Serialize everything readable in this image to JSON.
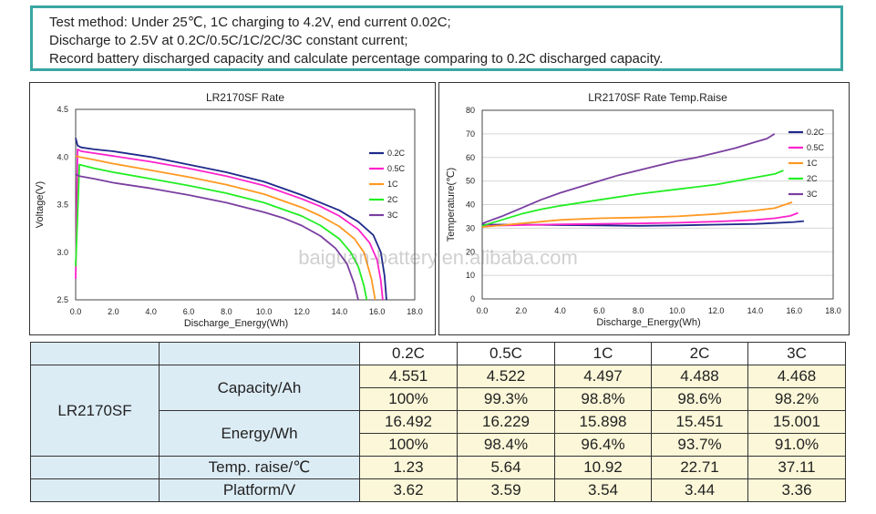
{
  "test_method": {
    "lines": [
      "Test method: Under 25℃, 1C charging to 4.2V, end current 0.02C;",
      "Discharge to 2.5V at 0.2C/0.5C/1C/2C/3C constant current;",
      "Record battery discharged capacity and calculate percentage comparing to 0.2C discharged capacity."
    ]
  },
  "watermark": "baiguan-battery.en.alibaba.com",
  "chart_data": [
    {
      "type": "line",
      "title": "LR2170SF Rate",
      "xlabel": "Discharge_Energy(Wh)",
      "ylabel": "Voltage(V)",
      "xlim": [
        0,
        18
      ],
      "ylim": [
        2.5,
        4.5
      ],
      "xticks": [
        "0.0",
        "2.0",
        "4.0",
        "6.0",
        "8.0",
        "10.0",
        "12.0",
        "14.0",
        "16.0",
        "18.0"
      ],
      "yticks": [
        "2.5",
        "3.0",
        "3.5",
        "4.0",
        "4.5"
      ],
      "grid": false,
      "legend": "right",
      "series": [
        {
          "name": "0.2C",
          "color": "#1f2a8a",
          "x": [
            0,
            0.1,
            0.3,
            1,
            2,
            4,
            6,
            8,
            10,
            12,
            13,
            14,
            15,
            15.8,
            16.2,
            16.4,
            16.5
          ],
          "y": [
            4.2,
            4.12,
            4.1,
            4.08,
            4.06,
            4.0,
            3.92,
            3.84,
            3.74,
            3.6,
            3.52,
            3.44,
            3.32,
            3.18,
            3.0,
            2.75,
            2.5
          ]
        },
        {
          "name": "0.5C",
          "color": "#ff22cc",
          "x": [
            0,
            0.1,
            0.3,
            1,
            2,
            4,
            6,
            8,
            10,
            12,
            13,
            14,
            15,
            15.6,
            16.0,
            16.2,
            16.3
          ],
          "y": [
            2.72,
            4.08,
            4.06,
            4.04,
            4.01,
            3.95,
            3.88,
            3.8,
            3.7,
            3.56,
            3.48,
            3.38,
            3.24,
            3.1,
            2.92,
            2.7,
            2.5
          ]
        },
        {
          "name": "1C",
          "color": "#ff9922",
          "x": [
            0,
            0.2,
            1,
            2,
            4,
            6,
            8,
            10,
            12,
            13,
            14,
            14.8,
            15.3,
            15.7,
            15.9
          ],
          "y": [
            4.01,
            4.0,
            3.97,
            3.93,
            3.86,
            3.79,
            3.71,
            3.61,
            3.47,
            3.38,
            3.27,
            3.14,
            3.0,
            2.72,
            2.5
          ]
        },
        {
          "name": "2C",
          "color": "#22ee22",
          "x": [
            0,
            0.2,
            1,
            2,
            4,
            6,
            8,
            10,
            12,
            13,
            14,
            14.6,
            15.0,
            15.3,
            15.45
          ],
          "y": [
            2.85,
            3.92,
            3.88,
            3.84,
            3.77,
            3.7,
            3.62,
            3.52,
            3.38,
            3.28,
            3.14,
            3.0,
            2.85,
            2.65,
            2.5
          ]
        },
        {
          "name": "3C",
          "color": "#7a3fa0",
          "x": [
            0,
            0.2,
            1,
            2,
            4,
            6,
            8,
            10,
            11,
            12,
            13,
            13.8,
            14.4,
            14.8,
            15.0
          ],
          "y": [
            3.82,
            3.8,
            3.77,
            3.73,
            3.67,
            3.6,
            3.52,
            3.42,
            3.36,
            3.28,
            3.17,
            3.04,
            2.88,
            2.66,
            2.5
          ]
        }
      ]
    },
    {
      "type": "line",
      "title": "LR2170SF Rate Temp.Raise",
      "xlabel": "Discharge_Energy(Wh)",
      "ylabel": "Temperature(℃)",
      "xlim": [
        0,
        18
      ],
      "ylim": [
        0,
        80
      ],
      "xticks": [
        "0.0",
        "2.0",
        "4.0",
        "6.0",
        "8.0",
        "10.0",
        "12.0",
        "14.0",
        "16.0",
        "18.0"
      ],
      "yticks": [
        "0",
        "10",
        "20",
        "30",
        "40",
        "50",
        "60",
        "70",
        "80"
      ],
      "grid": true,
      "legend": "right",
      "series": [
        {
          "name": "0.2C",
          "color": "#1f2a8a",
          "x": [
            0,
            2,
            4,
            6,
            8,
            10,
            12,
            14,
            15,
            16,
            16.5
          ],
          "y": [
            31.5,
            31.5,
            31.3,
            31.2,
            31.0,
            31.2,
            31.5,
            31.8,
            32.2,
            32.6,
            33.0
          ]
        },
        {
          "name": "0.5C",
          "color": "#ff22cc",
          "x": [
            0,
            2,
            4,
            6,
            8,
            10,
            12,
            14,
            15,
            15.8,
            16.2
          ],
          "y": [
            31.0,
            31.3,
            31.6,
            31.8,
            32.0,
            32.3,
            32.8,
            33.5,
            34.2,
            35.2,
            36.5
          ]
        },
        {
          "name": "1C",
          "color": "#ff9922",
          "x": [
            0,
            2,
            4,
            6,
            8,
            10,
            12,
            14,
            15,
            15.9
          ],
          "y": [
            30.5,
            32.0,
            33.5,
            34.2,
            34.5,
            35.0,
            36.0,
            37.5,
            38.5,
            41.0
          ]
        },
        {
          "name": "2C",
          "color": "#22ee22",
          "x": [
            0,
            1,
            2,
            3,
            4,
            6,
            8,
            10,
            12,
            13,
            14,
            15,
            15.45
          ],
          "y": [
            31.0,
            33.5,
            36.0,
            38.0,
            39.5,
            42.0,
            44.5,
            46.5,
            48.5,
            50.0,
            51.5,
            53.0,
            54.5
          ]
        },
        {
          "name": "3C",
          "color": "#7a3fa0",
          "x": [
            0,
            1,
            2,
            3,
            4,
            5,
            6,
            7,
            8,
            9,
            10,
            11,
            12,
            13,
            14,
            14.6,
            15.0
          ],
          "y": [
            32.0,
            35.0,
            38.5,
            42.0,
            45.0,
            47.5,
            50.0,
            52.5,
            54.5,
            56.5,
            58.5,
            60.0,
            62.0,
            64.0,
            66.5,
            68.0,
            70.0
          ]
        }
      ]
    },
    {
      "type": "table",
      "model": "LR2170SF",
      "columns": [
        "0.2C",
        "0.5C",
        "1C",
        "2C",
        "3C"
      ],
      "capacity_label": "Capacity/Ah",
      "capacity": [
        "4.551",
        "4.522",
        "4.497",
        "4.488",
        "4.468"
      ],
      "capacity_pct": [
        "100%",
        "99.3%",
        "98.8%",
        "98.6%",
        "98.2%"
      ],
      "energy_label": "Energy/Wh",
      "energy": [
        "16.492",
        "16.229",
        "15.898",
        "15.451",
        "15.001"
      ],
      "energy_pct": [
        "100%",
        "98.4%",
        "96.4%",
        "93.7%",
        "91.0%"
      ],
      "temp_label": "Temp. raise/℃",
      "temp": [
        "1.23",
        "5.64",
        "10.92",
        "22.71",
        "37.11"
      ],
      "platform_label": "Platform/V",
      "platform": [
        "3.62",
        "3.59",
        "3.54",
        "3.44",
        "3.36"
      ]
    }
  ]
}
